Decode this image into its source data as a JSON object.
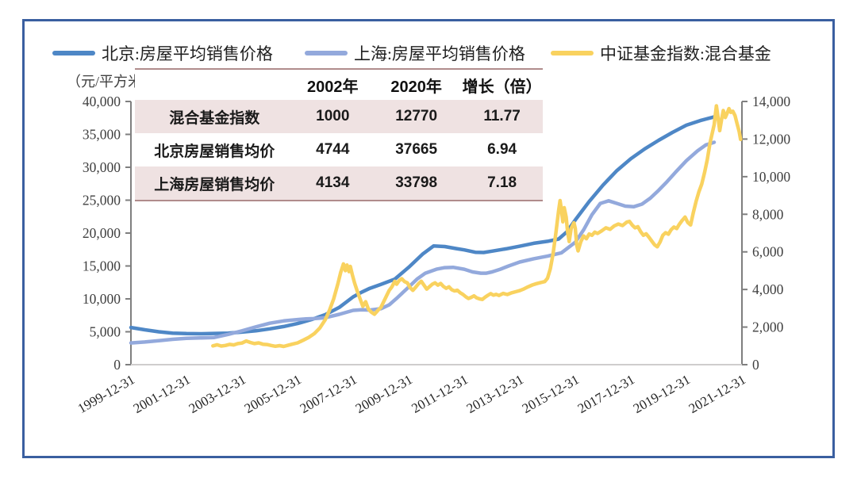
{
  "unit_label": "（元/平方米）",
  "return_mark": "↵",
  "table": {
    "headers": [
      "",
      "2002年",
      "2020年",
      "增长（倍）"
    ],
    "rows": [
      {
        "label": "混合基金指数",
        "v2002": "1000",
        "v2020": "12770",
        "growth": "11.77"
      },
      {
        "label": "北京房屋销售均价",
        "v2002": "4744",
        "v2020": "37665",
        "growth": "6.94"
      },
      {
        "label": "上海房屋销售均价",
        "v2002": "4134",
        "v2020": "33798",
        "growth": "7.18"
      }
    ]
  },
  "chart_data": {
    "type": "line",
    "title": "",
    "x_axis": {
      "tick_labels": [
        "1999-12-31",
        "2001-12-31",
        "2003-12-31",
        "2005-12-31",
        "2007-12-31",
        "2009-12-31",
        "2011-12-31",
        "2013-12-31",
        "2015-12-31",
        "2017-12-31",
        "2019-12-31",
        "2021-12-31"
      ],
      "years_per_tick": 2
    },
    "y_left": {
      "min": 0,
      "max": 40000,
      "step": 5000,
      "label": "元/平方米"
    },
    "y_right": {
      "min": 0,
      "max": 14000,
      "step": 2000,
      "label": ""
    },
    "grid": false,
    "legend_position": "top",
    "axis_color": "#7f7f7f",
    "baseline_color": "#cfcdcd",
    "series": [
      {
        "name": "北京:房屋平均销售价格",
        "color": "#4e87c6",
        "axis": "left",
        "points": [
          [
            0,
            5650
          ],
          [
            0.5,
            5300
          ],
          [
            1,
            5000
          ],
          [
            1.5,
            4800
          ],
          [
            2,
            4720
          ],
          [
            2.5,
            4700
          ],
          [
            3,
            4744
          ],
          [
            3.5,
            4800
          ],
          [
            4,
            4950
          ],
          [
            4.5,
            5150
          ],
          [
            5,
            5450
          ],
          [
            5.5,
            5800
          ],
          [
            6,
            6250
          ],
          [
            6.5,
            6850
          ],
          [
            7,
            7600
          ],
          [
            7.5,
            8700
          ],
          [
            8,
            10300
          ],
          [
            8.3,
            11000
          ],
          [
            8.6,
            11600
          ],
          [
            9,
            12200
          ],
          [
            9.5,
            13000
          ],
          [
            10,
            14800
          ],
          [
            10.5,
            16800
          ],
          [
            10.9,
            18050
          ],
          [
            11.3,
            17950
          ],
          [
            11.7,
            17650
          ],
          [
            12,
            17450
          ],
          [
            12.4,
            17080
          ],
          [
            12.7,
            17050
          ],
          [
            13,
            17250
          ],
          [
            13.5,
            17600
          ],
          [
            14,
            18000
          ],
          [
            14.5,
            18450
          ],
          [
            15,
            18750
          ],
          [
            15.4,
            19100
          ],
          [
            15.7,
            20200
          ],
          [
            16,
            22000
          ],
          [
            16.5,
            24800
          ],
          [
            17,
            27300
          ],
          [
            17.5,
            29500
          ],
          [
            18,
            31300
          ],
          [
            18.5,
            32800
          ],
          [
            19,
            34100
          ],
          [
            19.5,
            35300
          ],
          [
            20,
            36400
          ],
          [
            20.5,
            37100
          ],
          [
            21,
            37665
          ]
        ]
      },
      {
        "name": "上海:房屋平均销售价格",
        "color": "#93a9dc",
        "axis": "left",
        "points": [
          [
            0,
            3300
          ],
          [
            0.5,
            3450
          ],
          [
            1,
            3650
          ],
          [
            1.5,
            3850
          ],
          [
            2,
            4000
          ],
          [
            2.5,
            4060
          ],
          [
            3,
            4134
          ],
          [
            3.5,
            4600
          ],
          [
            4,
            5150
          ],
          [
            4.5,
            5750
          ],
          [
            5,
            6300
          ],
          [
            5.5,
            6650
          ],
          [
            6,
            6850
          ],
          [
            6.3,
            6950
          ],
          [
            6.6,
            7000
          ],
          [
            7,
            7150
          ],
          [
            7.5,
            7650
          ],
          [
            8,
            8250
          ],
          [
            8.3,
            8350
          ],
          [
            8.6,
            8300
          ],
          [
            9,
            8500
          ],
          [
            9.3,
            9100
          ],
          [
            9.6,
            10200
          ],
          [
            10,
            11800
          ],
          [
            10.3,
            13000
          ],
          [
            10.6,
            13900
          ],
          [
            11,
            14500
          ],
          [
            11.3,
            14750
          ],
          [
            11.6,
            14800
          ],
          [
            12,
            14500
          ],
          [
            12.3,
            14100
          ],
          [
            12.6,
            13900
          ],
          [
            12.8,
            13900
          ],
          [
            13,
            14100
          ],
          [
            13.3,
            14500
          ],
          [
            13.6,
            15000
          ],
          [
            14,
            15600
          ],
          [
            14.5,
            16100
          ],
          [
            15,
            16500
          ],
          [
            15.5,
            17000
          ],
          [
            16,
            18600
          ],
          [
            16.3,
            20500
          ],
          [
            16.6,
            22800
          ],
          [
            16.9,
            24500
          ],
          [
            17.2,
            24900
          ],
          [
            17.5,
            24500
          ],
          [
            17.8,
            24100
          ],
          [
            18.1,
            24000
          ],
          [
            18.4,
            24400
          ],
          [
            18.7,
            25300
          ],
          [
            19,
            26500
          ],
          [
            19.3,
            27800
          ],
          [
            19.6,
            29200
          ],
          [
            20,
            31000
          ],
          [
            20.4,
            32500
          ],
          [
            20.7,
            33400
          ],
          [
            21,
            33798
          ]
        ]
      },
      {
        "name": "中证基金指数:混合基金",
        "color": "#f9d25f",
        "axis": "right",
        "points": [
          [
            2.95,
            1000
          ],
          [
            3.1,
            1060
          ],
          [
            3.25,
            990
          ],
          [
            3.4,
            1020
          ],
          [
            3.55,
            1080
          ],
          [
            3.7,
            1050
          ],
          [
            3.85,
            1120
          ],
          [
            4,
            1150
          ],
          [
            4.15,
            1260
          ],
          [
            4.3,
            1180
          ],
          [
            4.45,
            1120
          ],
          [
            4.6,
            1160
          ],
          [
            4.75,
            1090
          ],
          [
            4.9,
            1070
          ],
          [
            5.05,
            1020
          ],
          [
            5.2,
            980
          ],
          [
            5.35,
            1010
          ],
          [
            5.5,
            970
          ],
          [
            5.65,
            1030
          ],
          [
            5.8,
            1090
          ],
          [
            6,
            1160
          ],
          [
            6.2,
            1300
          ],
          [
            6.4,
            1450
          ],
          [
            6.6,
            1650
          ],
          [
            6.8,
            1950
          ],
          [
            7,
            2400
          ],
          [
            7.15,
            2900
          ],
          [
            7.3,
            3500
          ],
          [
            7.45,
            4300
          ],
          [
            7.55,
            4900
          ],
          [
            7.65,
            5360
          ],
          [
            7.72,
            5000
          ],
          [
            7.78,
            5300
          ],
          [
            7.85,
            4950
          ],
          [
            7.9,
            5230
          ],
          [
            7.97,
            4800
          ],
          [
            8.05,
            4350
          ],
          [
            8.15,
            3900
          ],
          [
            8.25,
            3500
          ],
          [
            8.35,
            3100
          ],
          [
            8.45,
            3350
          ],
          [
            8.55,
            2950
          ],
          [
            8.65,
            2800
          ],
          [
            8.77,
            2680
          ],
          [
            8.9,
            2900
          ],
          [
            9,
            3050
          ],
          [
            9.1,
            3350
          ],
          [
            9.2,
            3650
          ],
          [
            9.3,
            3950
          ],
          [
            9.4,
            4150
          ],
          [
            9.5,
            4430
          ],
          [
            9.57,
            4280
          ],
          [
            9.65,
            4460
          ],
          [
            9.75,
            4570
          ],
          [
            9.85,
            4420
          ],
          [
            9.95,
            4350
          ],
          [
            10.05,
            4100
          ],
          [
            10.15,
            3950
          ],
          [
            10.25,
            4120
          ],
          [
            10.35,
            4300
          ],
          [
            10.45,
            4440
          ],
          [
            10.55,
            4230
          ],
          [
            10.65,
            4020
          ],
          [
            10.75,
            4150
          ],
          [
            10.85,
            4280
          ],
          [
            10.95,
            4350
          ],
          [
            11.05,
            4230
          ],
          [
            11.15,
            4320
          ],
          [
            11.25,
            4160
          ],
          [
            11.35,
            4060
          ],
          [
            11.45,
            4140
          ],
          [
            11.55,
            3990
          ],
          [
            11.65,
            3920
          ],
          [
            11.75,
            3960
          ],
          [
            11.85,
            3830
          ],
          [
            11.95,
            3740
          ],
          [
            12.05,
            3620
          ],
          [
            12.15,
            3520
          ],
          [
            12.25,
            3580
          ],
          [
            12.35,
            3660
          ],
          [
            12.45,
            3550
          ],
          [
            12.55,
            3500
          ],
          [
            12.65,
            3470
          ],
          [
            12.75,
            3590
          ],
          [
            12.85,
            3690
          ],
          [
            12.95,
            3780
          ],
          [
            13.05,
            3700
          ],
          [
            13.15,
            3740
          ],
          [
            13.25,
            3680
          ],
          [
            13.4,
            3790
          ],
          [
            13.55,
            3730
          ],
          [
            13.7,
            3820
          ],
          [
            13.85,
            3880
          ],
          [
            14,
            3940
          ],
          [
            14.15,
            4030
          ],
          [
            14.3,
            4140
          ],
          [
            14.45,
            4240
          ],
          [
            14.6,
            4310
          ],
          [
            14.75,
            4370
          ],
          [
            14.9,
            4420
          ],
          [
            15,
            4600
          ],
          [
            15.1,
            5100
          ],
          [
            15.2,
            5900
          ],
          [
            15.3,
            7000
          ],
          [
            15.4,
            8200
          ],
          [
            15.45,
            8730
          ],
          [
            15.5,
            8250
          ],
          [
            15.55,
            7600
          ],
          [
            15.6,
            8350
          ],
          [
            15.67,
            7850
          ],
          [
            15.72,
            7100
          ],
          [
            15.78,
            6550
          ],
          [
            15.85,
            7250
          ],
          [
            15.95,
            7550
          ],
          [
            16,
            7250
          ],
          [
            16.05,
            6350
          ],
          [
            16.1,
            6050
          ],
          [
            16.2,
            6550
          ],
          [
            16.3,
            6850
          ],
          [
            16.4,
            6700
          ],
          [
            16.5,
            6950
          ],
          [
            16.6,
            6880
          ],
          [
            16.7,
            7050
          ],
          [
            16.8,
            6980
          ],
          [
            16.95,
            7120
          ],
          [
            17.1,
            7280
          ],
          [
            17.25,
            7200
          ],
          [
            17.4,
            7380
          ],
          [
            17.55,
            7480
          ],
          [
            17.7,
            7400
          ],
          [
            17.85,
            7580
          ],
          [
            17.95,
            7620
          ],
          [
            18.05,
            7420
          ],
          [
            18.15,
            7280
          ],
          [
            18.25,
            7340
          ],
          [
            18.35,
            7080
          ],
          [
            18.45,
            6880
          ],
          [
            18.55,
            6960
          ],
          [
            18.65,
            6780
          ],
          [
            18.75,
            6580
          ],
          [
            18.85,
            6380
          ],
          [
            18.95,
            6270
          ],
          [
            19.05,
            6520
          ],
          [
            19.15,
            6880
          ],
          [
            19.25,
            7020
          ],
          [
            19.35,
            6940
          ],
          [
            19.45,
            7180
          ],
          [
            19.55,
            7320
          ],
          [
            19.65,
            7240
          ],
          [
            19.75,
            7480
          ],
          [
            19.85,
            7680
          ],
          [
            19.95,
            7850
          ],
          [
            20.05,
            7560
          ],
          [
            20.15,
            7430
          ],
          [
            20.25,
            8100
          ],
          [
            20.35,
            8700
          ],
          [
            20.45,
            9200
          ],
          [
            20.55,
            9600
          ],
          [
            20.65,
            10200
          ],
          [
            20.75,
            10900
          ],
          [
            20.85,
            11800
          ],
          [
            21,
            12770
          ],
          [
            21.08,
            13770
          ],
          [
            21.14,
            13150
          ],
          [
            21.2,
            12450
          ],
          [
            21.27,
            13050
          ],
          [
            21.33,
            13520
          ],
          [
            21.4,
            13150
          ],
          [
            21.47,
            13380
          ],
          [
            21.53,
            13620
          ],
          [
            21.6,
            13420
          ],
          [
            21.67,
            13480
          ],
          [
            21.75,
            13250
          ],
          [
            21.82,
            12850
          ],
          [
            21.9,
            12400
          ],
          [
            21.95,
            11980
          ]
        ]
      }
    ]
  },
  "colors": {
    "frame_border": "#3a5fa0",
    "table_border": "#b08c8c",
    "table_row_pink": "#efe2e2",
    "beijing_line": "#4e87c6",
    "shanghai_line": "#93a9dc",
    "fund_line": "#f9d25f"
  }
}
